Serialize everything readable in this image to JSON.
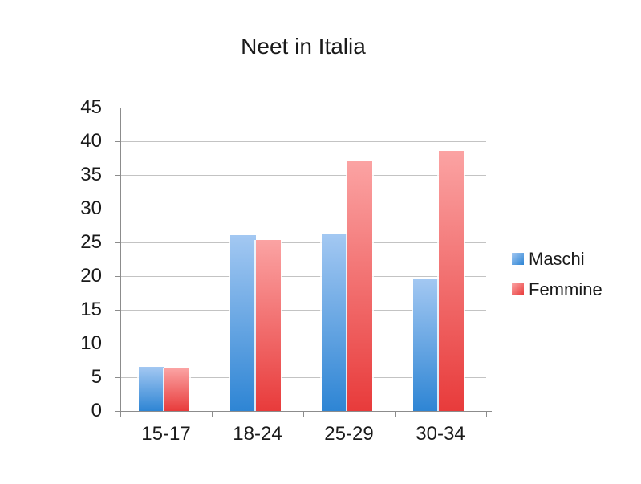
{
  "chart_data": {
    "type": "bar",
    "title": "Neet in Italia",
    "categories": [
      "15-17",
      "18-24",
      "25-29",
      "30-34"
    ],
    "series": [
      {
        "name": "Maschi",
        "values": [
          6.5,
          26.1,
          26.2,
          19.7
        ],
        "color_light": "#A3C8F2",
        "color_dark": "#2E85D4"
      },
      {
        "name": "Femmine",
        "values": [
          6.3,
          25.4,
          37.0,
          38.6
        ],
        "color_light": "#FBA3A3",
        "color_dark": "#E83B3B"
      }
    ],
    "xlabel": "",
    "ylabel": "",
    "ylim": [
      0,
      45
    ],
    "ytick_step": 5,
    "ytick_labels": [
      "0",
      "5",
      "10",
      "15",
      "20",
      "25",
      "30",
      "35",
      "40",
      "45"
    ],
    "grid": "horizontal-only",
    "legend_position": "right",
    "gridline_color": "#C3C3C3",
    "axis_color": "#8C8C8C",
    "text_color": "#1A1A1A",
    "background_color": "#FFFFFF"
  }
}
